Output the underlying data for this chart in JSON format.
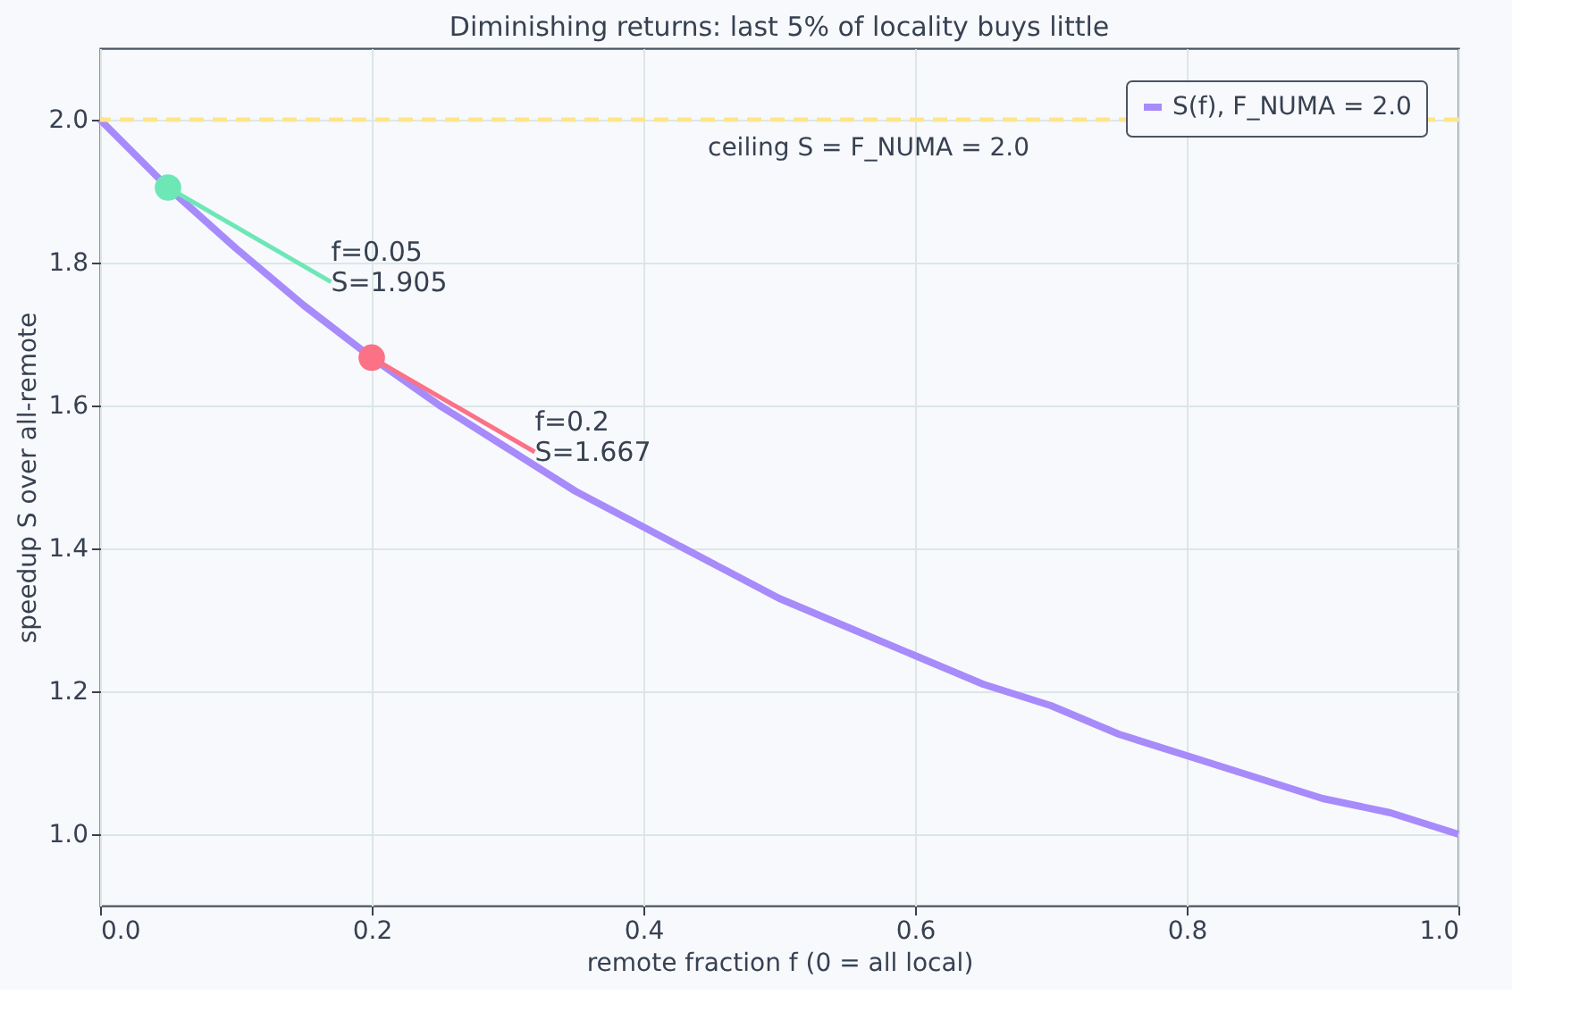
{
  "chart_data": {
    "type": "line",
    "title": "Diminishing returns: last 5% of locality buys little",
    "xlabel": "remote fraction  f  (0 = all local)",
    "ylabel": "speedup  S  over all-remote",
    "x": [
      0,
      0.05,
      0.1,
      0.15,
      0.2,
      0.25,
      0.3,
      0.35,
      0.4,
      0.45,
      0.5,
      0.55,
      0.6,
      0.65,
      0.7,
      0.75,
      0.8,
      0.85,
      0.9,
      0.95,
      1.0
    ],
    "series": [
      {
        "name": "S(f), F_NUMA = 2.0",
        "color": "#a78bfa",
        "values": [
          2.0,
          1.905,
          1.82,
          1.74,
          1.667,
          1.6,
          1.54,
          1.48,
          1.43,
          1.38,
          1.33,
          1.29,
          1.25,
          1.21,
          1.18,
          1.14,
          1.11,
          1.08,
          1.05,
          1.03,
          1.0
        ]
      }
    ],
    "xlim": [
      0,
      1
    ],
    "xticks": [
      {
        "value": 0,
        "label": "0.0"
      },
      {
        "value": 0.2,
        "label": "0.2"
      },
      {
        "value": 0.4,
        "label": "0.4"
      },
      {
        "value": 0.6,
        "label": "0.6"
      },
      {
        "value": 0.8,
        "label": "0.8"
      },
      {
        "value": 1,
        "label": "1.0"
      }
    ],
    "ylim": [
      0.9,
      2.1
    ],
    "yticks": [
      {
        "value": 1,
        "label": "1.0"
      },
      1.2,
      1.4,
      1.6,
      1.8,
      {
        "value": 2,
        "label": "2.0"
      }
    ],
    "ref_lines": [
      {
        "axis": "y",
        "value": 2.0,
        "label": "ceiling S = F_NUMA = 2.0",
        "color": "#fde68a",
        "line_style": "dashed"
      }
    ],
    "annotations": [
      {
        "text": "f=0.05\nS=1.905",
        "x": 0.05,
        "y": 1.905
      },
      {
        "text": "f=0.2\nS=1.667",
        "x": 0.2,
        "y": 1.667
      }
    ],
    "grid": true,
    "legend": "top right",
    "marker": "none",
    "line_style": "solid"
  }
}
